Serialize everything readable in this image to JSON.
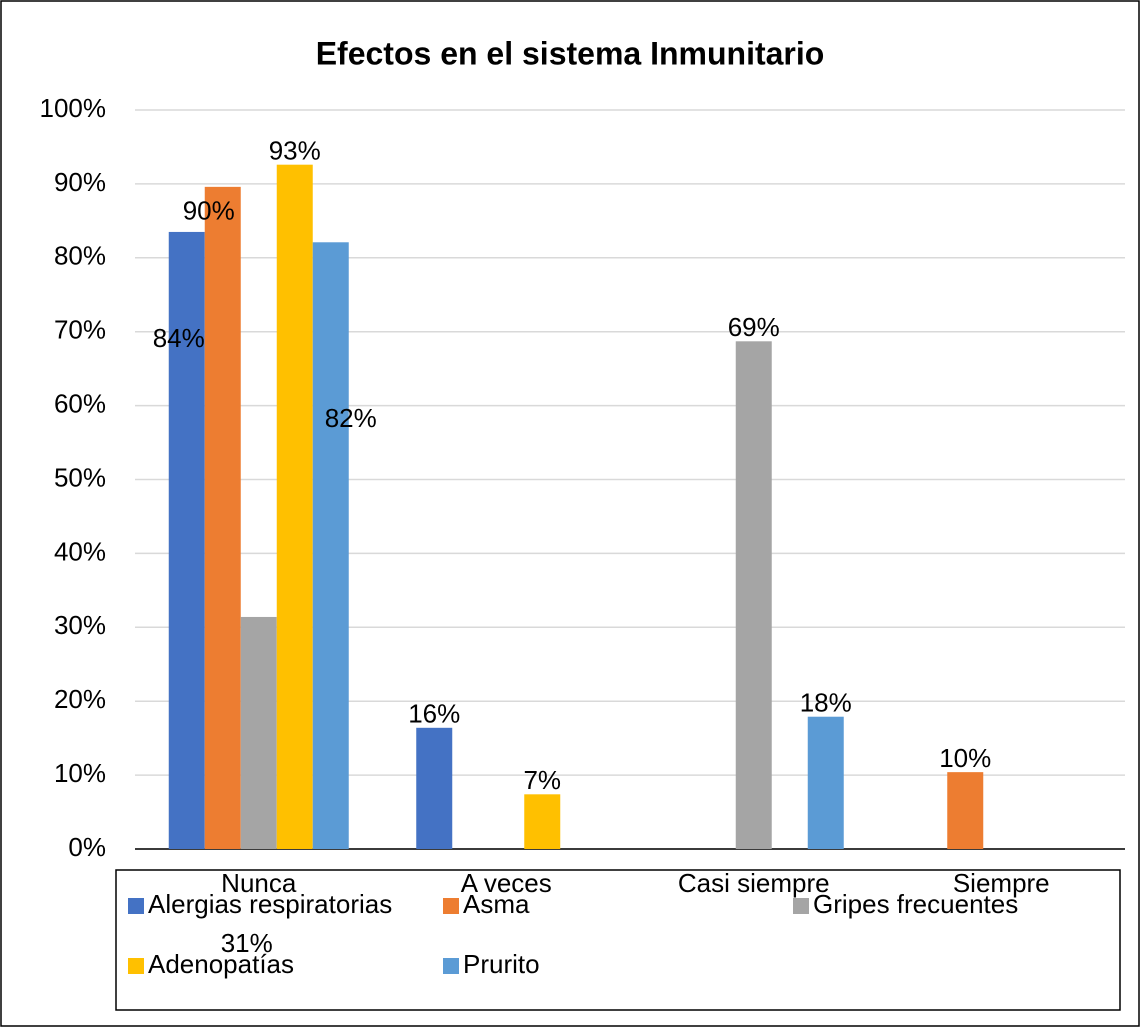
{
  "chart_data": {
    "type": "bar",
    "title": "Efectos en el sistema Inmunitario",
    "categories": [
      "Nunca",
      "A veces",
      "Casi siempre",
      "Siempre"
    ],
    "series": [
      {
        "name": "Alergias respiratorias",
        "color": "#4472c4",
        "values": [
          83.5,
          16.4,
          null,
          null
        ],
        "value_labels": [
          "84%",
          "16%",
          null,
          null
        ]
      },
      {
        "name": "Asma",
        "color": "#ed7d31",
        "values": [
          89.6,
          null,
          null,
          10.4
        ],
        "value_labels": [
          "90%",
          null,
          null,
          "10%"
        ]
      },
      {
        "name": "Gripes frecuentes",
        "color": "#a5a5a5",
        "values": [
          31.4,
          null,
          68.7,
          null
        ],
        "value_labels": [
          "31%",
          null,
          "69%",
          null
        ]
      },
      {
        "name": "Adenopatías",
        "color": "#ffc000",
        "values": [
          92.6,
          7.4,
          null,
          null
        ],
        "value_labels": [
          "93%",
          "7%",
          null,
          null
        ]
      },
      {
        "name": "Prurito",
        "color": "#5b9bd5",
        "values": [
          82.1,
          null,
          17.9,
          null
        ],
        "value_labels": [
          "82%",
          null,
          "18%",
          null
        ]
      }
    ],
    "ylim": [
      0,
      100
    ],
    "yticks": [
      {
        "value": 0,
        "label": "0%"
      },
      {
        "value": 10,
        "label": "10%"
      },
      {
        "value": 20,
        "label": "20%"
      },
      {
        "value": 30,
        "label": "30%"
      },
      {
        "value": 40,
        "label": "40%"
      },
      {
        "value": 50,
        "label": "50%"
      },
      {
        "value": 60,
        "label": "60%"
      },
      {
        "value": 70,
        "label": "70%"
      },
      {
        "value": 80,
        "label": "80%"
      },
      {
        "value": 90,
        "label": "90%"
      },
      {
        "value": 100,
        "label": "100%"
      }
    ],
    "grid": true,
    "legend": "bottom"
  }
}
